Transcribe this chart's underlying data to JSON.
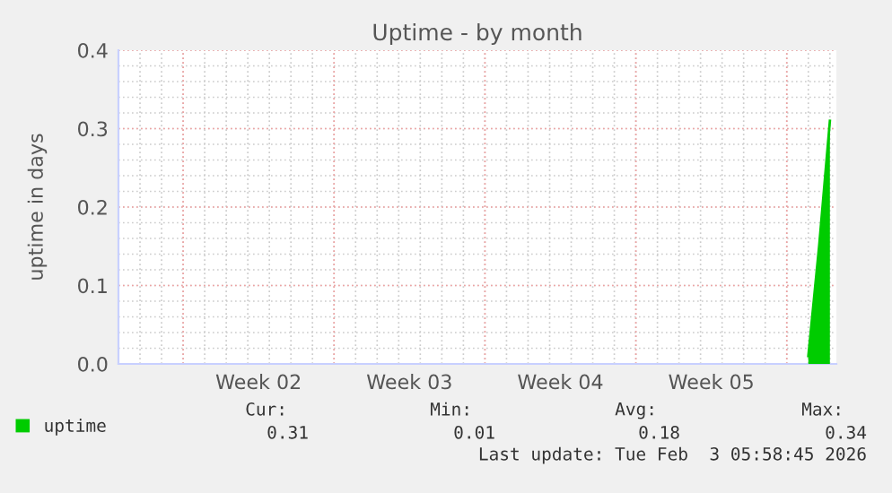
{
  "chart_data": {
    "type": "area",
    "title": "Uptime - by month",
    "ylabel": "uptime in days",
    "categories": [
      null,
      null,
      null,
      null,
      null,
      null,
      null,
      null,
      null,
      null,
      null,
      null,
      null,
      "Week 02",
      null,
      null,
      null,
      null,
      null,
      null,
      null,
      null,
      null,
      null,
      null,
      null,
      null,
      "Week 03",
      null,
      null,
      null,
      null,
      null,
      null,
      null,
      null,
      null,
      null,
      null,
      null,
      null,
      "Week 04",
      null,
      null,
      null,
      null,
      null,
      null,
      null,
      null,
      null,
      null,
      null,
      null,
      null,
      "Week 05",
      null,
      null,
      null,
      null,
      null,
      null,
      null,
      null,
      null,
      null,
      null
    ],
    "series": [
      {
        "name": "uptime",
        "color": "#00cc00",
        "values": [
          null,
          null,
          null,
          null,
          null,
          null,
          null,
          null,
          null,
          null,
          null,
          null,
          null,
          null,
          null,
          null,
          null,
          null,
          null,
          null,
          null,
          null,
          null,
          null,
          null,
          null,
          null,
          null,
          null,
          null,
          null,
          null,
          null,
          null,
          null,
          null,
          null,
          null,
          null,
          null,
          null,
          null,
          null,
          null,
          null,
          null,
          null,
          null,
          null,
          null,
          null,
          null,
          null,
          null,
          null,
          null,
          null,
          null,
          null,
          null,
          null,
          null,
          null,
          null,
          0.01,
          0.15,
          0.31
        ]
      }
    ],
    "ylim": [
      0,
      0.4
    ],
    "yticks": [
      {
        "value": 0,
        "label": "0.0"
      },
      {
        "value": 0.1,
        "label": "0.1"
      },
      {
        "value": 0.2,
        "label": "0.2"
      },
      {
        "value": 0.3,
        "label": "0.3"
      },
      {
        "value": 0.4,
        "label": "0.4"
      }
    ],
    "grid": true,
    "legend": "bottom left",
    "annotations": [
      "Cur:",
      "Min:",
      "Avg:",
      "Max:",
      "0.31",
      "0.01",
      "0.18",
      "0.34",
      "Last update: Tue Feb  3 05:58:45 2026"
    ]
  }
}
